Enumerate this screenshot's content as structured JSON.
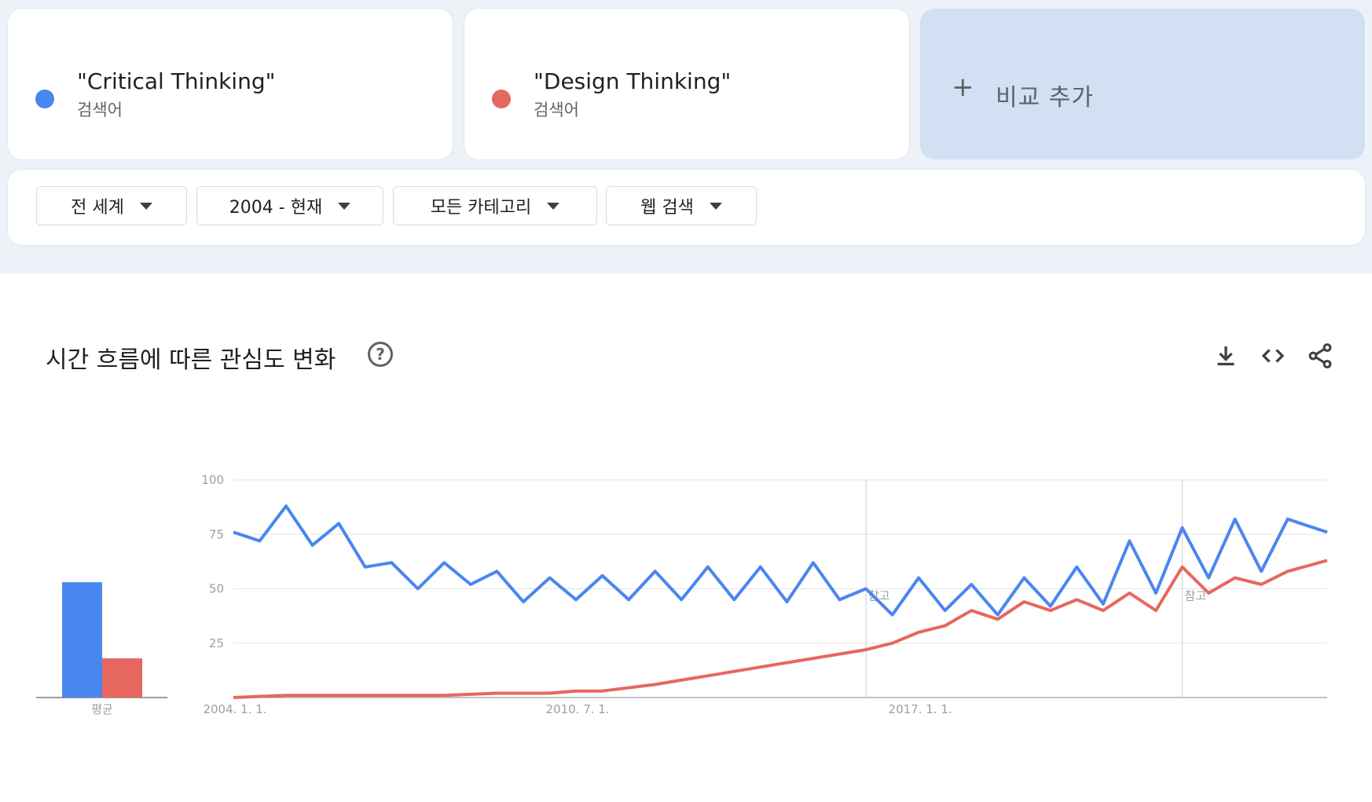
{
  "terms": [
    {
      "name": "\"Critical Thinking\"",
      "sub": "검색어",
      "color": "#4a86f0"
    },
    {
      "name": "\"Design Thinking\"",
      "sub": "검색어",
      "color": "#e66760"
    }
  ],
  "add_compare": {
    "icon": "plus-icon",
    "label": "비교 추가"
  },
  "filters": [
    {
      "label": "전 세계"
    },
    {
      "label": "2004 - 현재"
    },
    {
      "label": "모든 카테고리"
    },
    {
      "label": "웹 검색"
    }
  ],
  "chart_panel": {
    "title": "시간 흐름에 따른 관심도 변화",
    "help_icon": "help-icon",
    "tools": [
      "download-icon",
      "embed-code-icon",
      "share-icon"
    ]
  },
  "chart_data": [
    {
      "type": "bar",
      "categories": [
        "평균"
      ],
      "series": [
        {
          "name": "\"Critical Thinking\"",
          "values": [
            53
          ],
          "color": "#4a86f0"
        },
        {
          "name": "\"Design Thinking\"",
          "values": [
            18
          ],
          "color": "#e66760"
        }
      ],
      "ylim": [
        0,
        100
      ]
    },
    {
      "type": "line",
      "x_range": [
        "2004-01",
        "2024-10"
      ],
      "x_ticks": [
        {
          "date": "2004-01",
          "label": "2004. 1. 1."
        },
        {
          "date": "2010-07",
          "label": "2010. 7. 1."
        },
        {
          "date": "2017-01",
          "label": "2017. 1. 1."
        }
      ],
      "y_ticks": [
        25,
        50,
        75,
        100
      ],
      "ylim": [
        0,
        100
      ],
      "grid": true,
      "annotations": [
        {
          "date": "2016-01",
          "label": "참고"
        },
        {
          "date": "2022-01",
          "label": "참고"
        }
      ],
      "series": [
        {
          "name": "\"Critical Thinking\"",
          "color": "#4a86f0",
          "points": [
            [
              "2004-01",
              76
            ],
            [
              "2004-07",
              72
            ],
            [
              "2005-01",
              88
            ],
            [
              "2005-07",
              70
            ],
            [
              "2006-01",
              80
            ],
            [
              "2006-07",
              60
            ],
            [
              "2007-01",
              62
            ],
            [
              "2007-07",
              50
            ],
            [
              "2008-01",
              62
            ],
            [
              "2008-07",
              52
            ],
            [
              "2009-01",
              58
            ],
            [
              "2009-07",
              44
            ],
            [
              "2010-01",
              55
            ],
            [
              "2010-07",
              45
            ],
            [
              "2011-01",
              56
            ],
            [
              "2011-07",
              45
            ],
            [
              "2012-01",
              58
            ],
            [
              "2012-07",
              45
            ],
            [
              "2013-01",
              60
            ],
            [
              "2013-07",
              45
            ],
            [
              "2014-01",
              60
            ],
            [
              "2014-07",
              44
            ],
            [
              "2015-01",
              62
            ],
            [
              "2015-07",
              45
            ],
            [
              "2016-01",
              50
            ],
            [
              "2016-07",
              38
            ],
            [
              "2017-01",
              55
            ],
            [
              "2017-07",
              40
            ],
            [
              "2018-01",
              52
            ],
            [
              "2018-07",
              38
            ],
            [
              "2019-01",
              55
            ],
            [
              "2019-07",
              42
            ],
            [
              "2020-01",
              60
            ],
            [
              "2020-07",
              43
            ],
            [
              "2021-01",
              72
            ],
            [
              "2021-07",
              48
            ],
            [
              "2022-01",
              78
            ],
            [
              "2022-07",
              55
            ],
            [
              "2023-01",
              82
            ],
            [
              "2023-07",
              58
            ],
            [
              "2024-01",
              82
            ],
            [
              "2024-10",
              76
            ]
          ]
        },
        {
          "name": "\"Design Thinking\"",
          "color": "#e66760",
          "points": [
            [
              "2004-01",
              0
            ],
            [
              "2005-01",
              1
            ],
            [
              "2006-01",
              1
            ],
            [
              "2007-01",
              1
            ],
            [
              "2008-01",
              1
            ],
            [
              "2009-01",
              2
            ],
            [
              "2010-01",
              2
            ],
            [
              "2010-07",
              3
            ],
            [
              "2011-01",
              3
            ],
            [
              "2012-01",
              6
            ],
            [
              "2013-01",
              10
            ],
            [
              "2014-01",
              14
            ],
            [
              "2015-01",
              18
            ],
            [
              "2016-01",
              22
            ],
            [
              "2016-07",
              25
            ],
            [
              "2017-01",
              30
            ],
            [
              "2017-07",
              33
            ],
            [
              "2018-01",
              40
            ],
            [
              "2018-07",
              36
            ],
            [
              "2019-01",
              44
            ],
            [
              "2019-07",
              40
            ],
            [
              "2020-01",
              45
            ],
            [
              "2020-07",
              40
            ],
            [
              "2021-01",
              48
            ],
            [
              "2021-07",
              40
            ],
            [
              "2022-01",
              60
            ],
            [
              "2022-07",
              48
            ],
            [
              "2023-01",
              55
            ],
            [
              "2023-07",
              52
            ],
            [
              "2024-01",
              58
            ],
            [
              "2024-10",
              63
            ]
          ]
        }
      ]
    }
  ]
}
